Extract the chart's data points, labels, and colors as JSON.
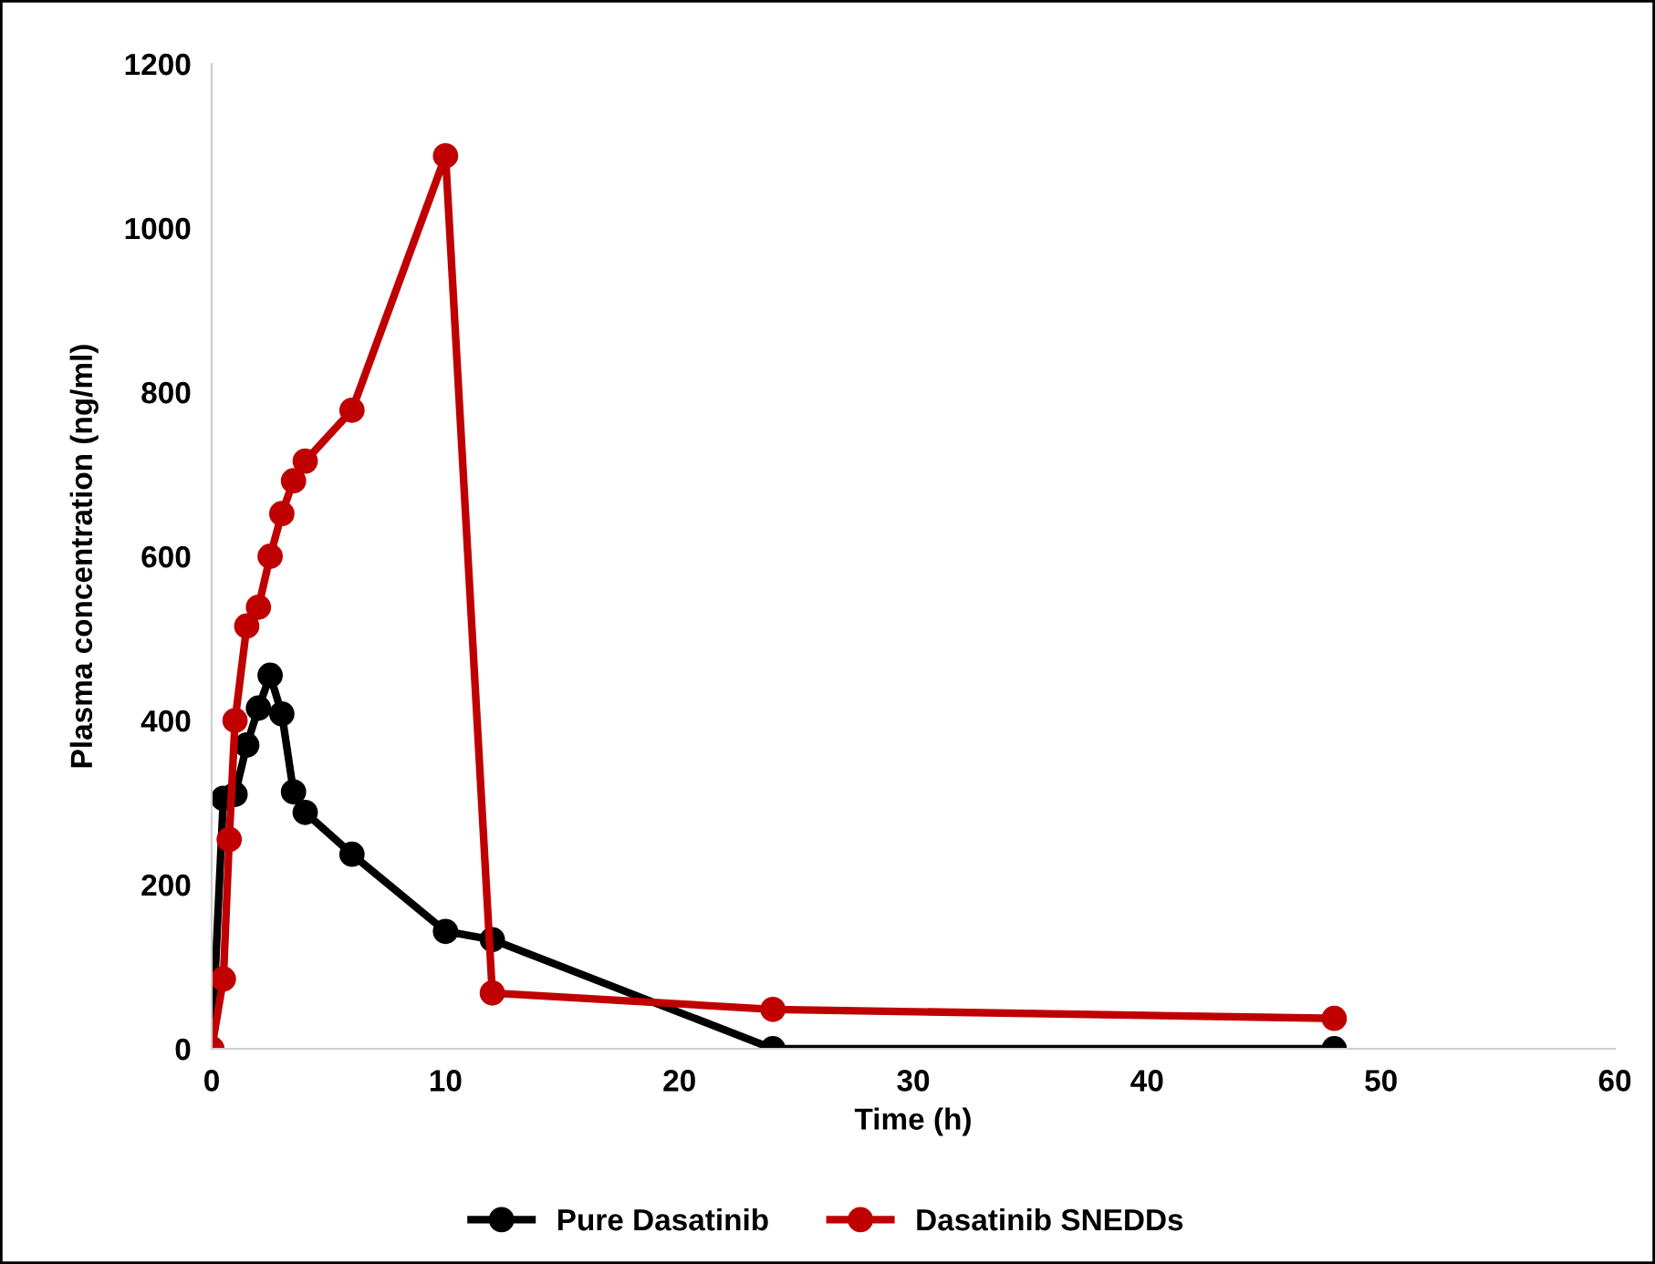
{
  "chart_data": {
    "type": "line",
    "xlabel": "Time (h)",
    "ylabel": "Plasma concentration (ng/ml)",
    "xlim": [
      0,
      60
    ],
    "xticks": [
      0,
      10,
      20,
      30,
      40,
      50,
      60
    ],
    "ylim": [
      0,
      1200
    ],
    "yticks": [
      0,
      200,
      400,
      600,
      800,
      1000,
      1200
    ],
    "grid": false,
    "legend": "bottom",
    "marker": "circle",
    "line_style": "solid",
    "series": [
      {
        "name": "Pure Dasatinib",
        "color": "#000000",
        "x": [
          0,
          0.5,
          1,
          1.5,
          2,
          2.5,
          3,
          3.5,
          4,
          6,
          10,
          12,
          24,
          48
        ],
        "values": [
          0,
          305,
          310,
          370,
          415,
          455,
          408,
          313,
          288,
          237,
          143,
          133,
          0,
          0
        ]
      },
      {
        "name": "Dasatinib SNEDDs",
        "color": "#c00000",
        "x": [
          0,
          0.5,
          0.75,
          1,
          1.5,
          2,
          2.5,
          3,
          3.5,
          4,
          6,
          10,
          12,
          24,
          48
        ],
        "values": [
          0,
          85,
          255,
          400,
          515,
          538,
          600,
          652,
          692,
          716,
          778,
          1088,
          68,
          48,
          37
        ]
      }
    ]
  }
}
